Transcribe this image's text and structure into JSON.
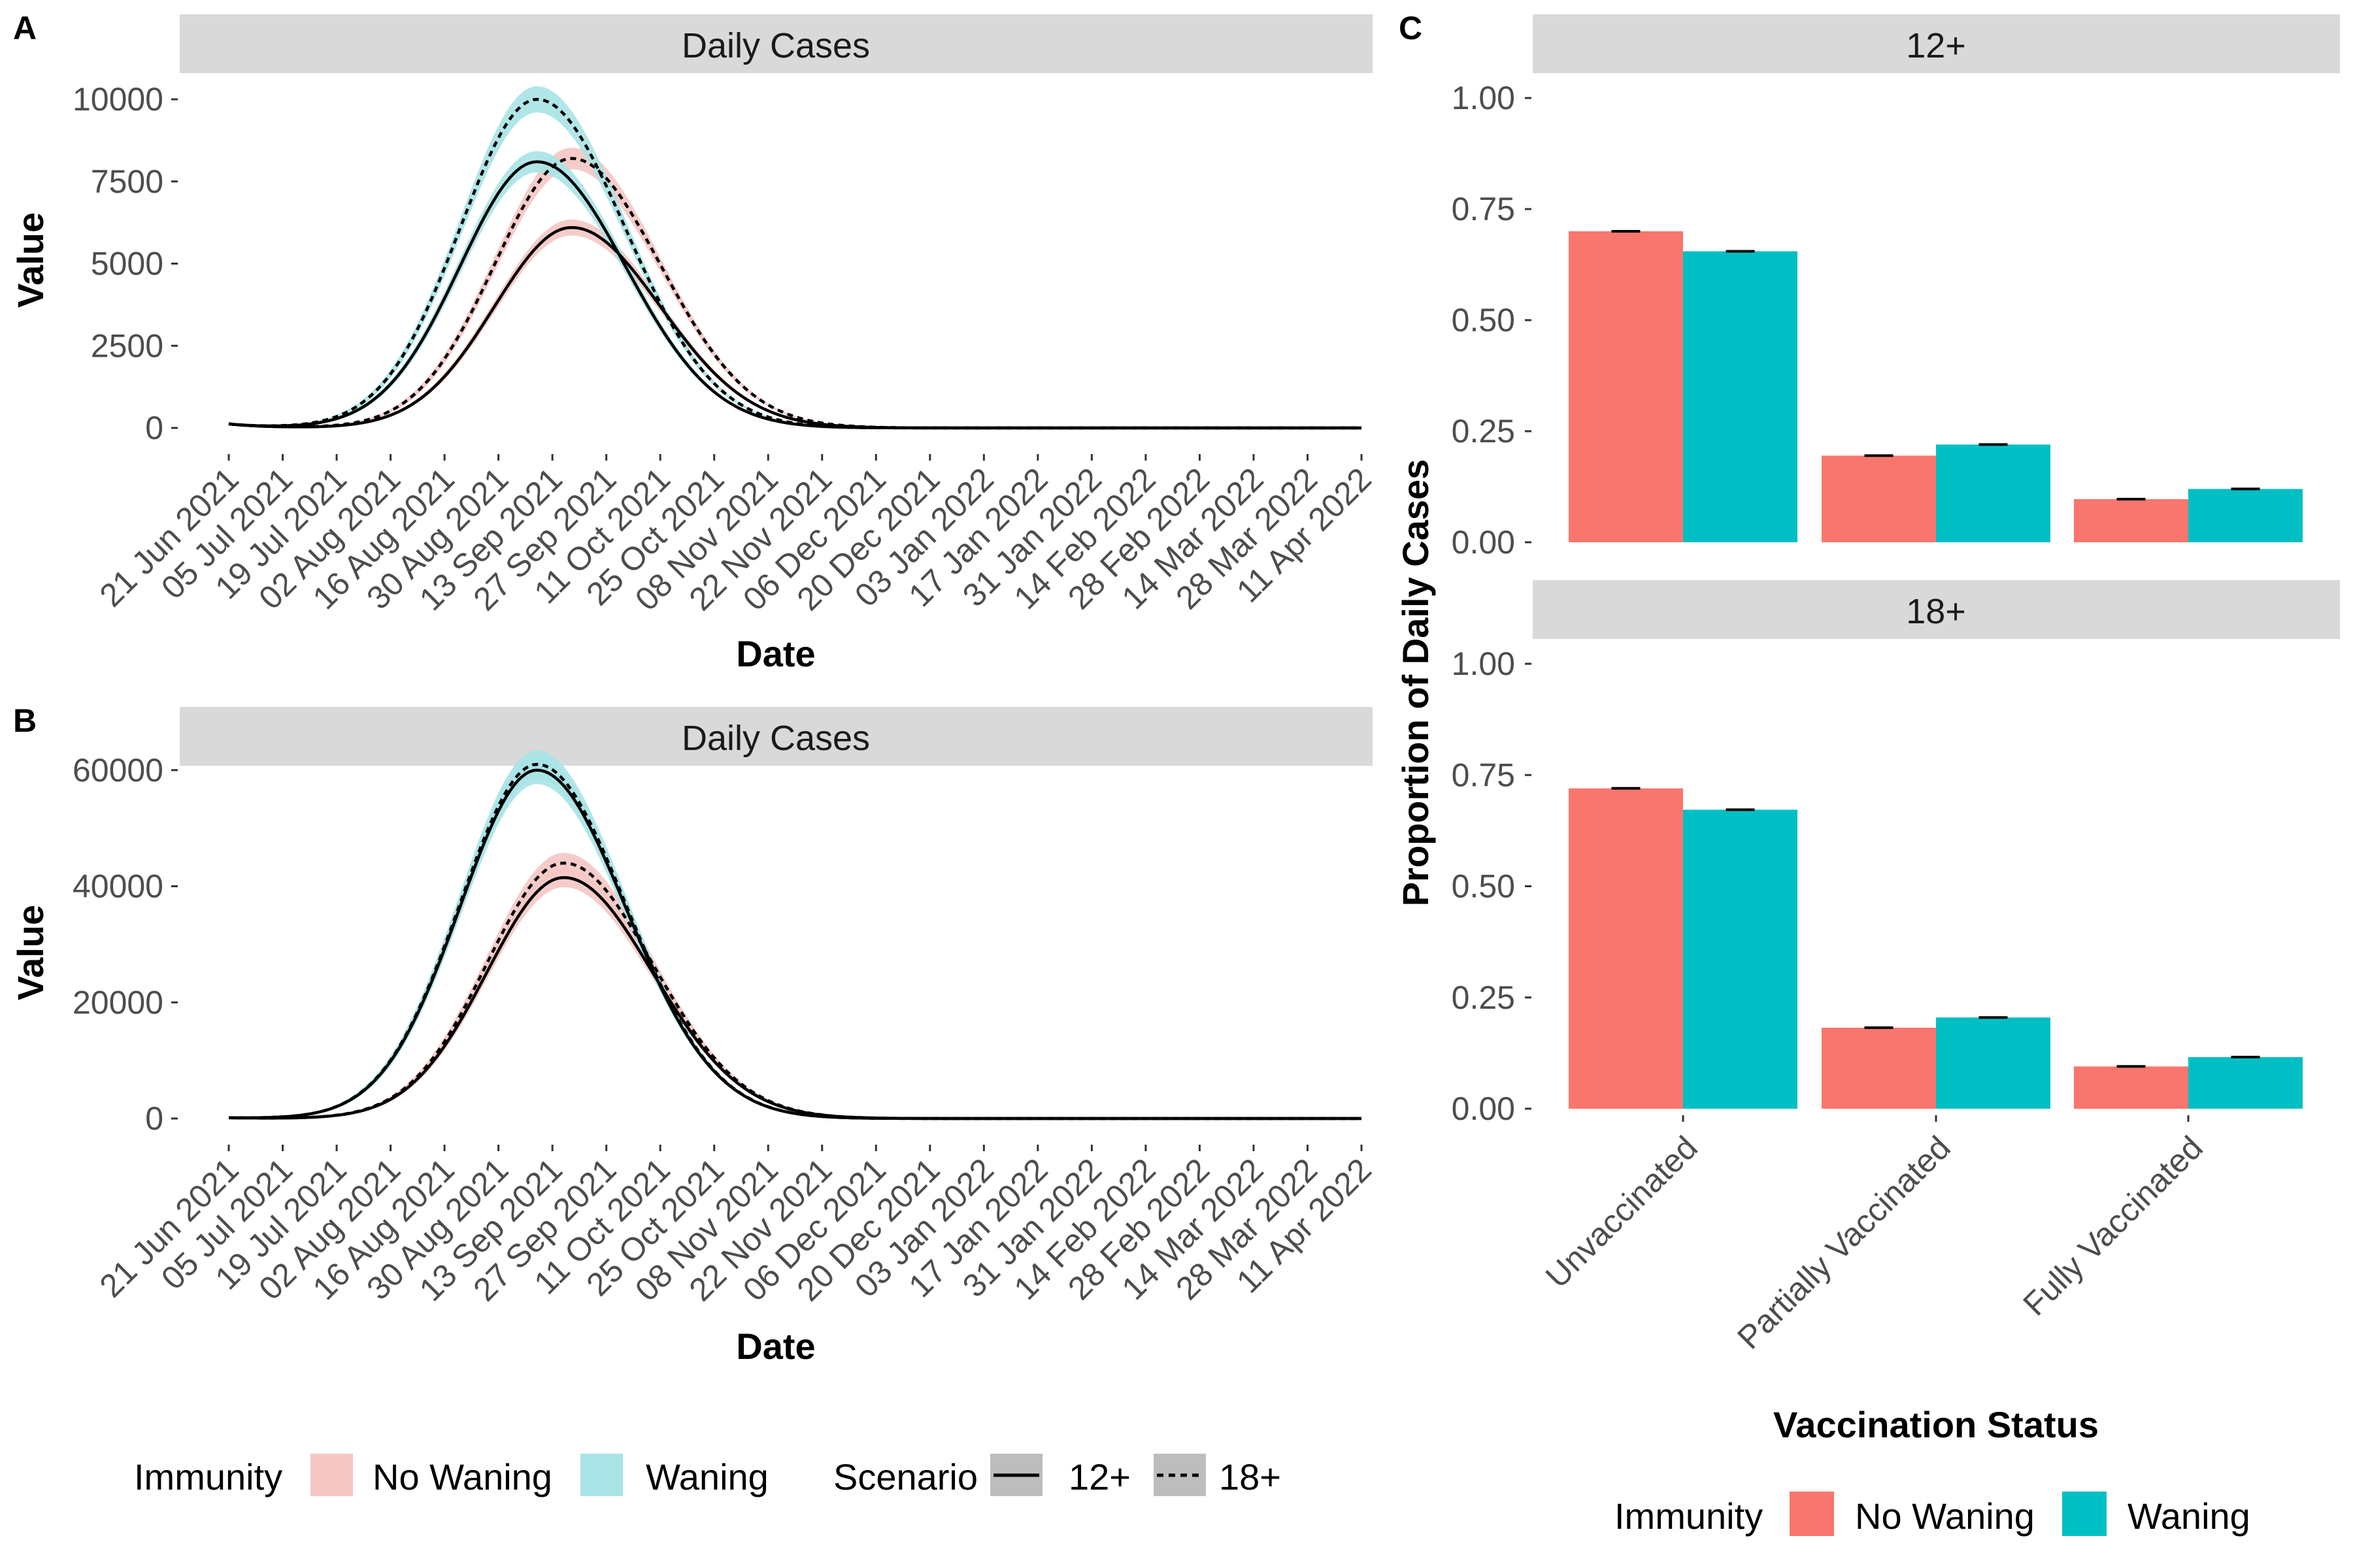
{
  "colors": {
    "no_waning": "#F8766D",
    "waning": "#00BFC4",
    "no_waning_ribbon": "#F4C7C3",
    "waning_ribbon": "#A8E3E5",
    "strip": "#D9D9D9"
  },
  "panel_a": {
    "tag": "A",
    "strip": "Daily Cases",
    "xlabel": "Date",
    "ylabel": "Value",
    "y_ticks": [
      "0",
      "2500",
      "5000",
      "7500",
      "10000"
    ],
    "x_ticks": [
      "21 Jun 2021",
      "05 Jul 2021",
      "19 Jul 2021",
      "02 Aug 2021",
      "16 Aug 2021",
      "30 Aug 2021",
      "13 Sep 2021",
      "27 Sep 2021",
      "11 Oct 2021",
      "25 Oct 2021",
      "08 Nov 2021",
      "22 Nov 2021",
      "06 Dec 2021",
      "20 Dec 2021",
      "03 Jan 2022",
      "17 Jan 2022",
      "31 Jan 2022",
      "14 Feb 2022",
      "28 Feb 2022",
      "14 Mar 2022",
      "28 Mar 2022",
      "11 Apr 2022"
    ]
  },
  "panel_b": {
    "tag": "B",
    "strip": "Daily Cases",
    "xlabel": "Date",
    "ylabel": "Value",
    "y_ticks": [
      "0",
      "20000",
      "40000",
      "60000"
    ],
    "x_ticks": [
      "21 Jun 2021",
      "05 Jul 2021",
      "19 Jul 2021",
      "02 Aug 2021",
      "16 Aug 2021",
      "30 Aug 2021",
      "13 Sep 2021",
      "27 Sep 2021",
      "11 Oct 2021",
      "25 Oct 2021",
      "08 Nov 2021",
      "22 Nov 2021",
      "06 Dec 2021",
      "20 Dec 2021",
      "03 Jan 2022",
      "17 Jan 2022",
      "31 Jan 2022",
      "14 Feb 2022",
      "28 Feb 2022",
      "14 Mar 2022",
      "28 Mar 2022",
      "11 Apr 2022"
    ]
  },
  "panel_c": {
    "tag": "C",
    "strips": [
      "12+",
      "18+"
    ],
    "xlabel": "Vaccination Status",
    "ylabel": "Proportion of Daily Cases",
    "y_ticks": [
      "0.00",
      "0.25",
      "0.50",
      "0.75",
      "1.00"
    ]
  },
  "legend_left": {
    "immunity_title": "Immunity",
    "immunity_items": [
      "No Waning",
      "Waning"
    ],
    "scenario_title": "Scenario",
    "scenario_items": [
      "12+",
      "18+"
    ]
  },
  "legend_right": {
    "title": "Immunity",
    "items": [
      "No Waning",
      "Waning"
    ]
  },
  "chart_data": [
    {
      "panel": "A",
      "type": "line",
      "strip_title": "Daily Cases",
      "xlabel": "Date",
      "ylabel": "Value",
      "x_range": [
        "2021-06-21",
        "2022-04-11"
      ],
      "ylim": [
        0,
        10000
      ],
      "y_ticks": [
        0,
        2500,
        5000,
        7500,
        10000
      ],
      "grid": false,
      "series": [
        {
          "immunity": "No Waning",
          "scenario": "12+",
          "line": "solid",
          "peak_date": "2021-09-18",
          "peak_value": 6100,
          "start_value": 120
        },
        {
          "immunity": "No Waning",
          "scenario": "18+",
          "line": "dashed",
          "peak_date": "2021-09-18",
          "peak_value": 8200,
          "start_value": 120
        },
        {
          "immunity": "Waning",
          "scenario": "12+",
          "line": "solid",
          "peak_date": "2021-09-09",
          "peak_value": 8100,
          "start_value": 120
        },
        {
          "immunity": "Waning",
          "scenario": "18+",
          "line": "dashed",
          "peak_date": "2021-09-09",
          "peak_value": 10000,
          "start_value": 120
        }
      ]
    },
    {
      "panel": "B",
      "type": "line",
      "strip_title": "Daily Cases",
      "xlabel": "Date",
      "ylabel": "Value",
      "x_range": [
        "2021-06-21",
        "2022-04-11"
      ],
      "ylim": [
        0,
        62000
      ],
      "y_ticks": [
        0,
        20000,
        40000,
        60000
      ],
      "grid": false,
      "series": [
        {
          "immunity": "No Waning",
          "scenario": "12+",
          "line": "solid",
          "peak_date": "2021-09-16",
          "peak_value": 41500,
          "start_value": 120
        },
        {
          "immunity": "No Waning",
          "scenario": "18+",
          "line": "dashed",
          "peak_date": "2021-09-16",
          "peak_value": 44000,
          "start_value": 120
        },
        {
          "immunity": "Waning",
          "scenario": "12+",
          "line": "solid",
          "peak_date": "2021-09-09",
          "peak_value": 60000,
          "start_value": 120
        },
        {
          "immunity": "Waning",
          "scenario": "18+",
          "line": "dashed",
          "peak_date": "2021-09-09",
          "peak_value": 61000,
          "start_value": 120
        }
      ]
    },
    {
      "panel": "C",
      "type": "bar",
      "xlabel": "Vaccination Status",
      "ylabel": "Proportion of Daily Cases",
      "categories": [
        "Unvaccinated",
        "Partially Vaccinated",
        "Fully Vaccinated"
      ],
      "ylim": [
        0,
        1
      ],
      "facets": [
        {
          "facet": "12+",
          "series": [
            {
              "name": "No Waning",
              "values": [
                0.7,
                0.195,
                0.097
              ]
            },
            {
              "name": "Waning",
              "values": [
                0.655,
                0.22,
                0.12
              ]
            }
          ]
        },
        {
          "facet": "18+",
          "series": [
            {
              "name": "No Waning",
              "values": [
                0.72,
                0.182,
                0.095
              ]
            },
            {
              "name": "Waning",
              "values": [
                0.672,
                0.205,
                0.116
              ]
            }
          ]
        }
      ]
    }
  ]
}
